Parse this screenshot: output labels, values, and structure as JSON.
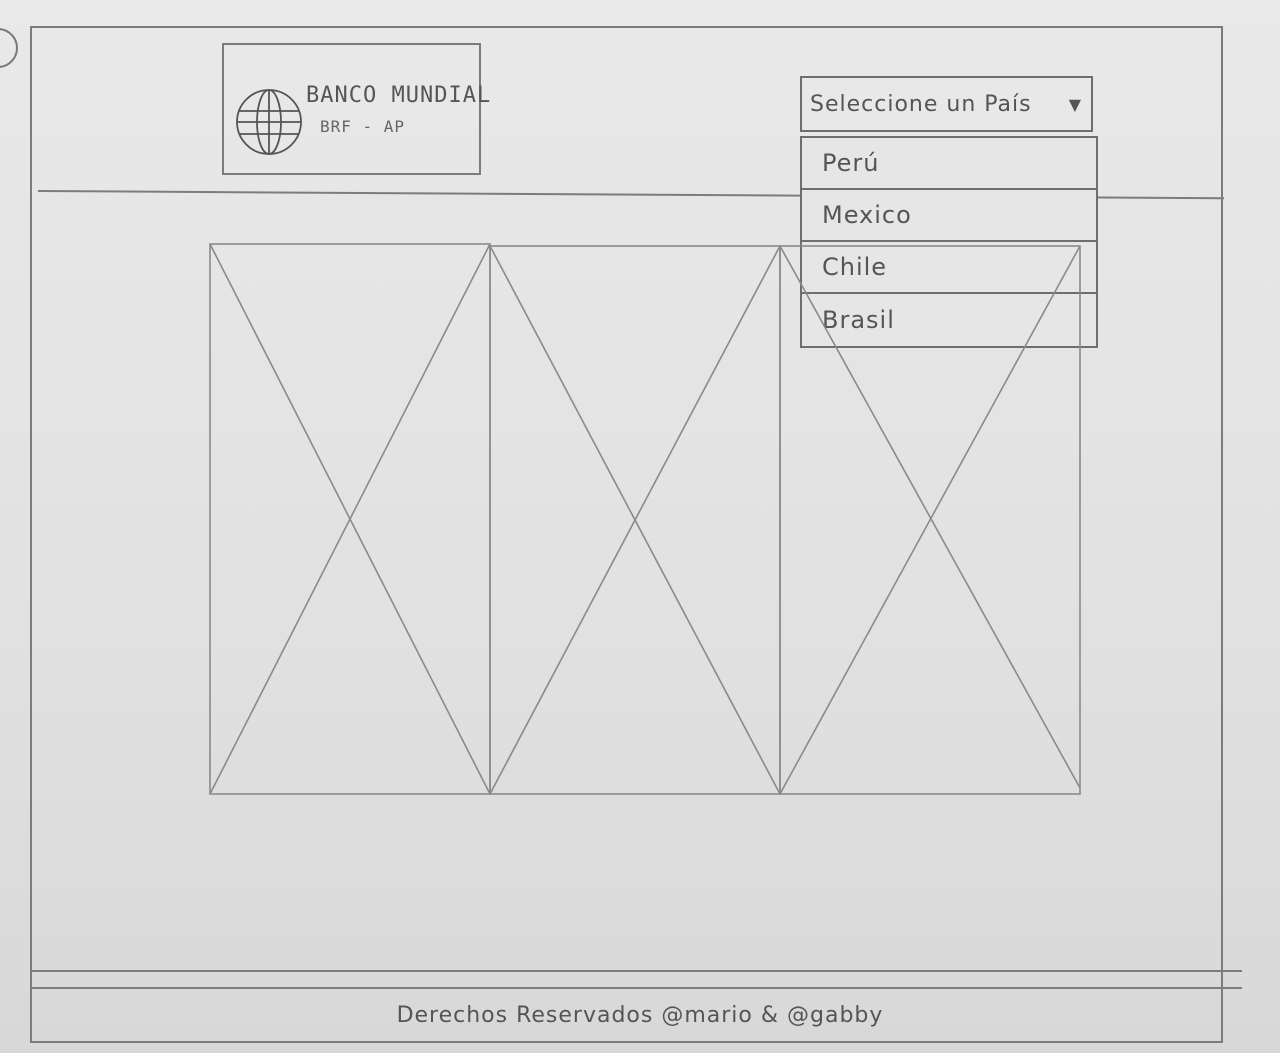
{
  "header": {
    "logo": {
      "title": "BANCO MUNDIAL",
      "subtitle": "BRF - AP",
      "icon": "globe-icon"
    },
    "country_select": {
      "placeholder": "Seleccione un País",
      "arrow_icon": "triangle-down-icon",
      "options": [
        {
          "label": "Perú"
        },
        {
          "label": "Mexico"
        },
        {
          "label": "Chile"
        },
        {
          "label": "Brasil"
        }
      ]
    }
  },
  "gallery": {
    "placeholders": 3
  },
  "footer": {
    "text": "Derechos Reservados @mario & @gabby"
  }
}
